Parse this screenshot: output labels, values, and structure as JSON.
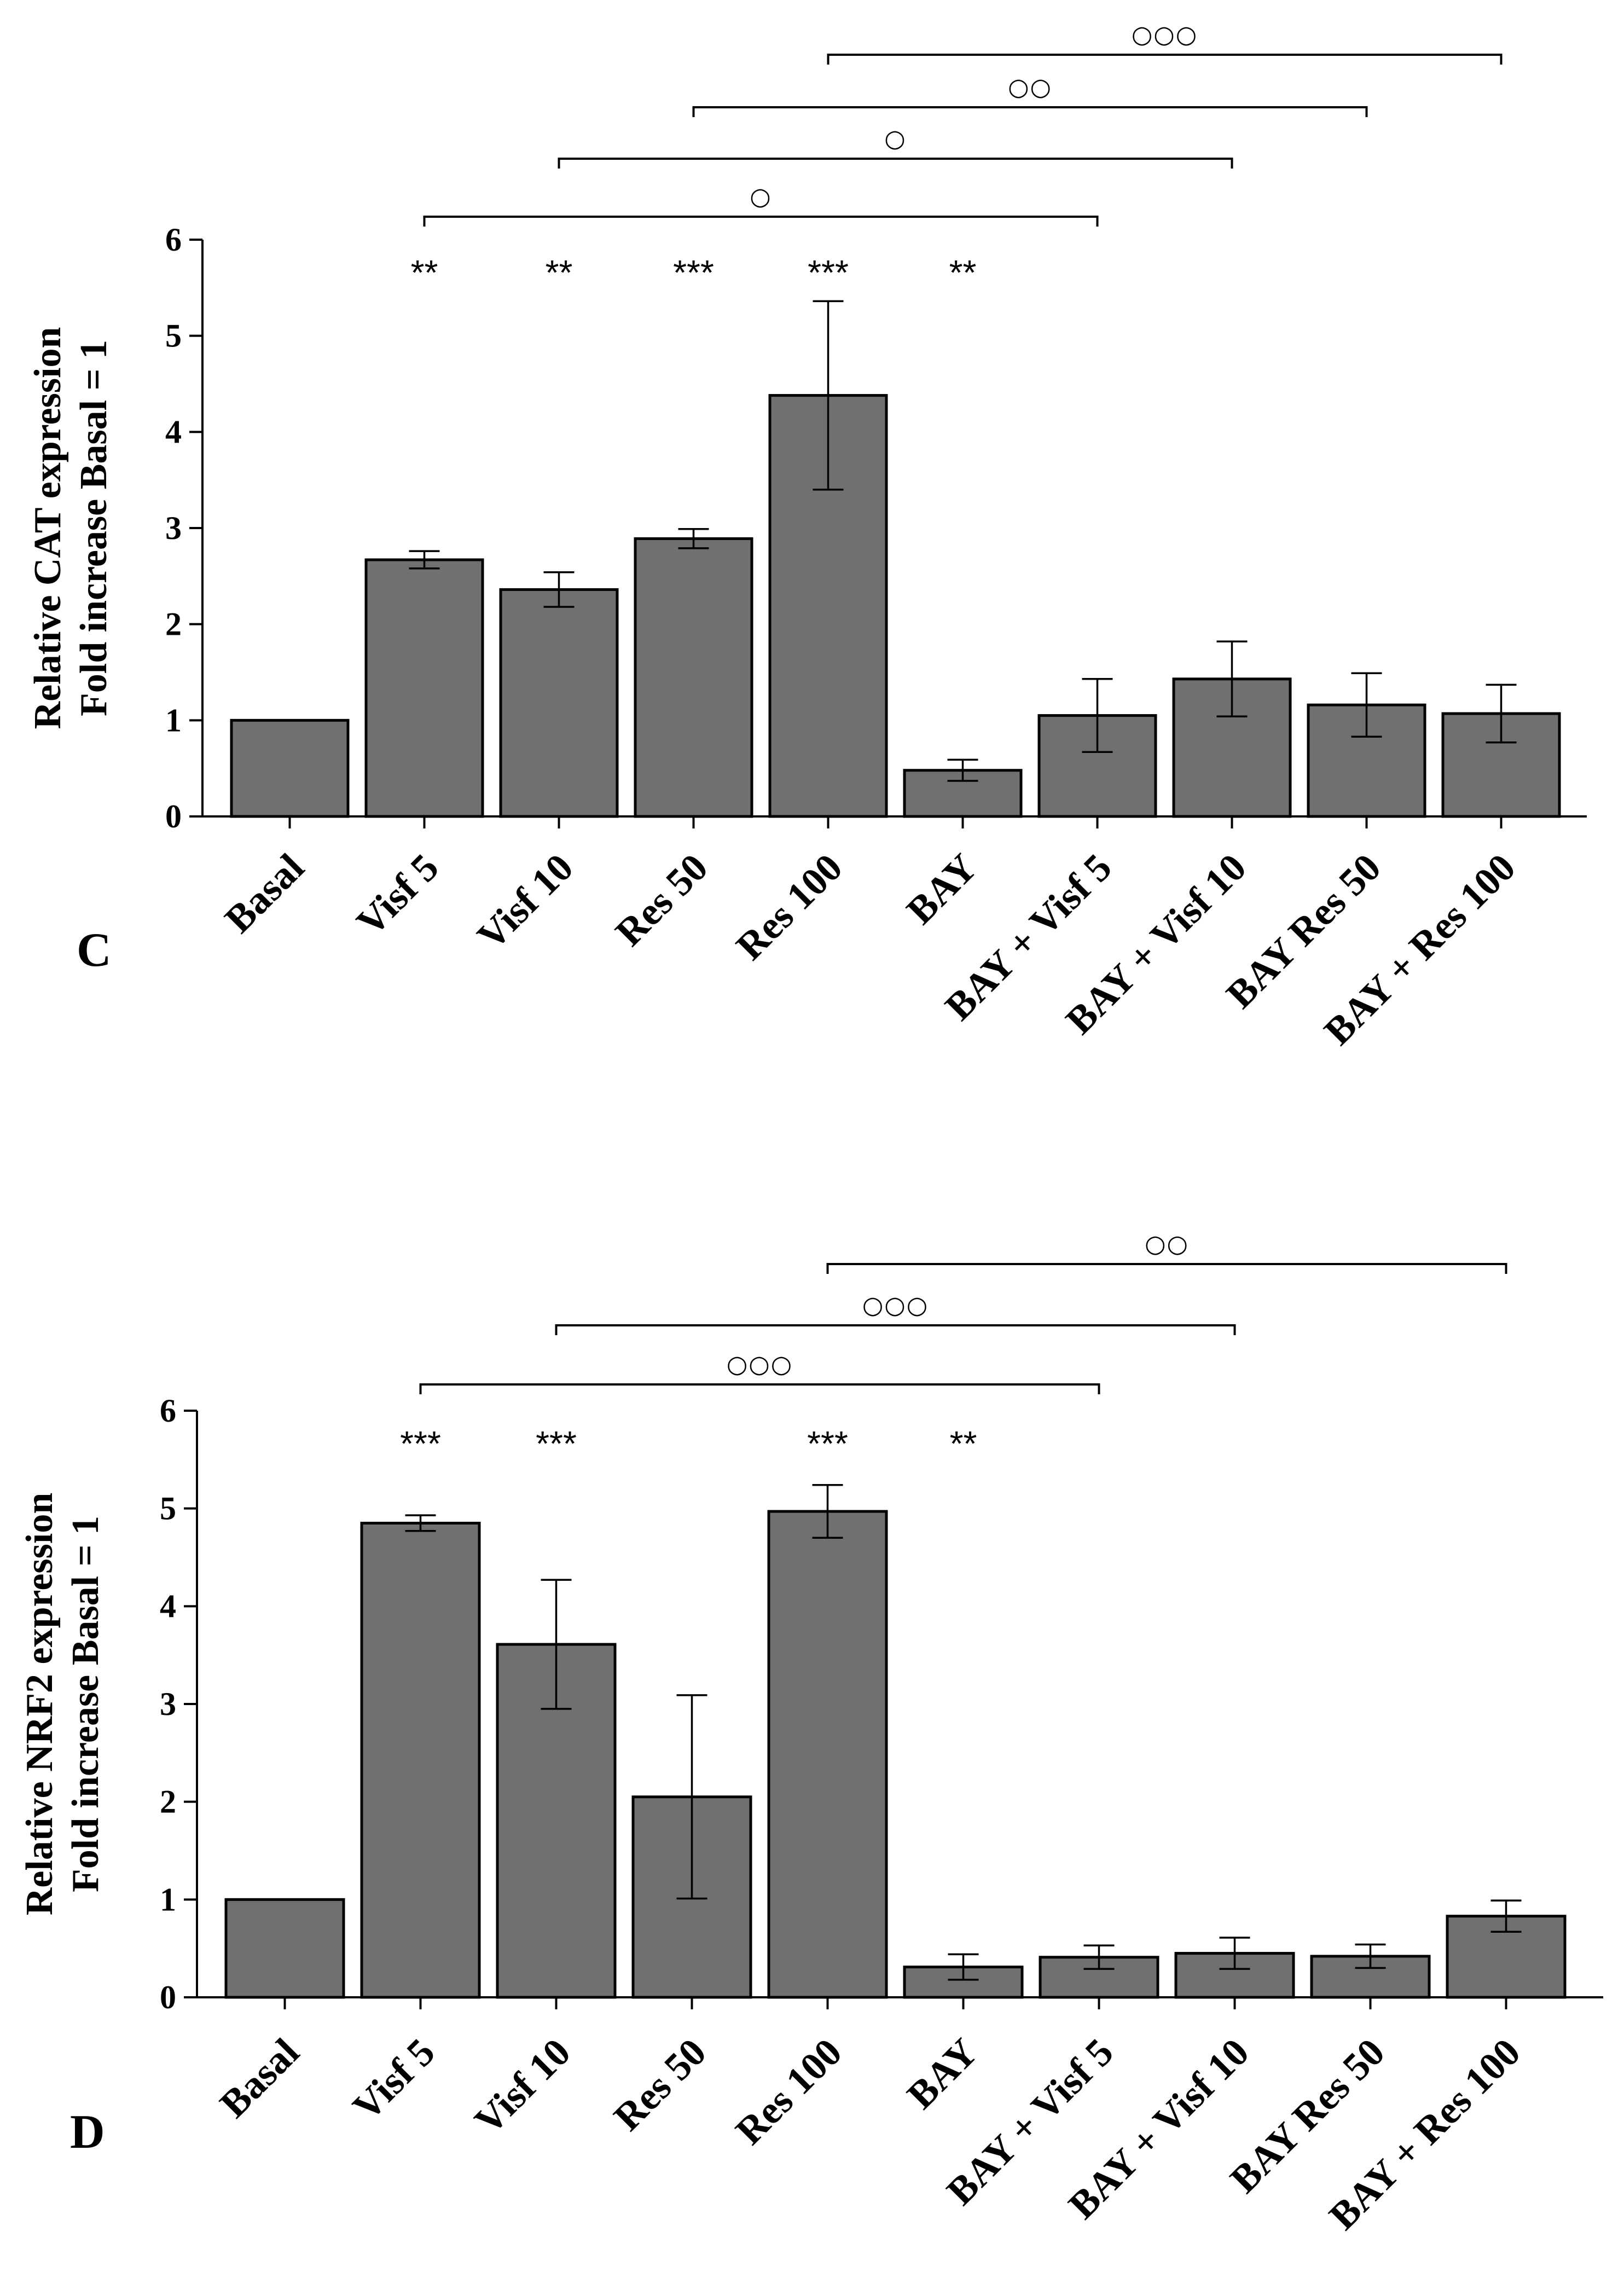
{
  "chart_data": [
    {
      "type": "bar",
      "panel": "C",
      "ylabel": [
        "Relative CAT expression",
        "Fold increase Basal = 1"
      ],
      "ylim": [
        0,
        6
      ],
      "yticks": [
        "0",
        "1",
        "2",
        "3",
        "4",
        "5",
        "6"
      ],
      "categories": [
        "Basal",
        "Visf 5",
        "Visf 10",
        "Res 50",
        "Res 100",
        "BAY",
        "BAY + Visf 5",
        "BAY + Visf 10",
        "BAY Res 50",
        "BAY + Res 100"
      ],
      "values": [
        1.0,
        2.67,
        2.36,
        2.89,
        4.38,
        0.48,
        1.05,
        1.43,
        1.16,
        1.07
      ],
      "errors": [
        0,
        0.09,
        0.18,
        0.1,
        0.98,
        0.11,
        0.38,
        0.39,
        0.33,
        0.3
      ],
      "significance": [
        "",
        "**",
        "**",
        "***",
        "***",
        "**",
        "",
        "",
        "",
        ""
      ],
      "brackets": [
        {
          "from": 1,
          "to": 6,
          "label": "○"
        },
        {
          "from": 2,
          "to": 7,
          "label": "○"
        },
        {
          "from": 3,
          "to": 8,
          "label": "○○"
        },
        {
          "from": 4,
          "to": 9,
          "label": "○○○"
        }
      ]
    },
    {
      "type": "bar",
      "panel": "D",
      "ylabel": [
        "Relative NRF2 expression",
        "Fold increase Basal = 1"
      ],
      "ylim": [
        0,
        6
      ],
      "yticks": [
        "0",
        "1",
        "2",
        "3",
        "4",
        "5",
        "6"
      ],
      "categories": [
        "Basal",
        "Visf 5",
        "Visf 10",
        "Res 50",
        "Res 100",
        "BAY",
        "BAY + Visf 5",
        "BAY + Visf 10",
        "BAY Res 50",
        "BAY + Res 100"
      ],
      "values": [
        1.0,
        4.85,
        3.61,
        2.05,
        4.97,
        0.31,
        0.41,
        0.45,
        0.42,
        0.83
      ],
      "errors": [
        0,
        0.08,
        0.66,
        1.04,
        0.27,
        0.13,
        0.12,
        0.16,
        0.12,
        0.16
      ],
      "significance": [
        "",
        "***",
        "***",
        "",
        "***",
        "**",
        "",
        "",
        "",
        ""
      ],
      "brackets": [
        {
          "from": 1,
          "to": 6,
          "label": "○○○"
        },
        {
          "from": 2,
          "to": 7,
          "label": "○○○"
        },
        {
          "from": 4,
          "to": 9,
          "label": "○○"
        }
      ]
    }
  ]
}
